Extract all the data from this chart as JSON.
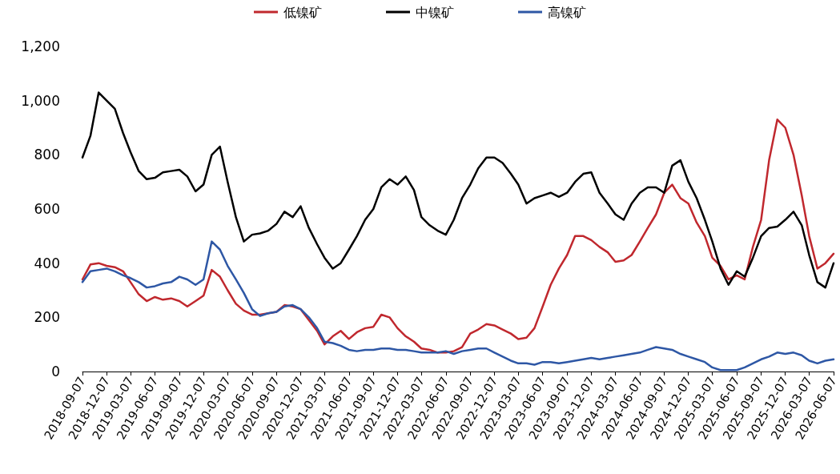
{
  "chart_data": {
    "type": "line",
    "x": [
      "2018-09-07",
      "2018-10-07",
      "2018-11-07",
      "2018-12-07",
      "2019-01-07",
      "2019-02-07",
      "2019-03-07",
      "2019-04-07",
      "2019-05-07",
      "2019-06-07",
      "2019-07-07",
      "2019-08-07",
      "2019-09-07",
      "2019-10-07",
      "2019-11-07",
      "2019-12-07",
      "2020-01-07",
      "2020-02-07",
      "2020-03-07",
      "2020-04-07",
      "2020-05-07",
      "2020-06-07",
      "2020-07-07",
      "2020-08-07",
      "2020-09-07",
      "2020-10-07",
      "2020-11-07",
      "2020-12-07",
      "2021-01-07",
      "2021-02-07",
      "2021-03-07",
      "2021-04-07",
      "2021-05-07",
      "2021-06-07",
      "2021-07-07",
      "2021-08-07",
      "2021-09-07",
      "2021-10-07",
      "2021-11-07",
      "2021-12-07",
      "2022-01-07",
      "2022-02-07",
      "2022-03-07",
      "2022-04-07",
      "2022-05-07",
      "2022-06-07",
      "2022-07-07",
      "2022-08-07",
      "2022-09-07",
      "2022-10-07",
      "2022-11-07",
      "2022-12-07",
      "2023-01-07",
      "2023-02-07",
      "2023-03-07",
      "2023-04-07",
      "2023-05-07",
      "2023-06-07",
      "2023-07-07",
      "2023-08-07",
      "2023-09-07",
      "2023-10-07",
      "2023-11-07",
      "2023-12-07",
      "2024-01-07",
      "2024-02-07",
      "2024-03-07",
      "2024-04-07",
      "2024-05-07",
      "2024-06-07",
      "2024-07-07",
      "2024-08-07",
      "2024-09-07",
      "2024-10-07",
      "2024-11-07",
      "2024-12-07",
      "2025-01-07",
      "2025-02-07",
      "2025-03-07",
      "2025-04-07",
      "2025-05-07",
      "2025-06-07",
      "2025-07-07",
      "2025-08-07",
      "2025-09-07",
      "2025-10-07",
      "2025-11-07",
      "2025-12-07",
      "2026-01-07",
      "2026-02-07",
      "2026-03-07",
      "2026-04-07",
      "2026-05-07",
      "2026-06-07"
    ],
    "series": [
      {
        "name": "低镍矿",
        "color": "#c0282e",
        "values": [
          340,
          395,
          400,
          390,
          385,
          370,
          330,
          285,
          260,
          275,
          265,
          270,
          260,
          240,
          260,
          280,
          375,
          350,
          300,
          250,
          225,
          210,
          210,
          215,
          220,
          245,
          240,
          230,
          190,
          150,
          100,
          130,
          150,
          120,
          145,
          160,
          165,
          210,
          200,
          160,
          130,
          110,
          85,
          80,
          70,
          70,
          75,
          90,
          140,
          155,
          175,
          170,
          155,
          140,
          120,
          125,
          160,
          240,
          320,
          380,
          430,
          500,
          500,
          485,
          460,
          440,
          405,
          410,
          430,
          480,
          530,
          580,
          660,
          690,
          640,
          620,
          550,
          500,
          420,
          390,
          340,
          355,
          340,
          460,
          560,
          780,
          930,
          900,
          800,
          650,
          500,
          380,
          400,
          435
        ]
      },
      {
        "name": "中镍矿",
        "color": "#000000",
        "values": [
          790,
          870,
          1030,
          1000,
          970,
          880,
          810,
          740,
          710,
          715,
          735,
          740,
          745,
          720,
          665,
          690,
          800,
          830,
          700,
          570,
          480,
          505,
          510,
          520,
          545,
          590,
          570,
          610,
          530,
          470,
          420,
          380,
          400,
          450,
          500,
          560,
          600,
          680,
          710,
          690,
          720,
          670,
          570,
          540,
          520,
          505,
          560,
          640,
          690,
          750,
          790,
          790,
          770,
          730,
          690,
          620,
          640,
          650,
          660,
          645,
          660,
          700,
          730,
          735,
          660,
          620,
          580,
          560,
          620,
          660,
          680,
          680,
          660,
          760,
          780,
          700,
          640,
          560,
          480,
          380,
          320,
          370,
          350,
          420,
          500,
          530,
          535,
          560,
          590,
          540,
          430,
          330,
          310,
          400
        ]
      },
      {
        "name": "高镍矿",
        "color": "#2e57a5",
        "values": [
          330,
          370,
          375,
          380,
          370,
          355,
          345,
          330,
          310,
          315,
          325,
          330,
          350,
          340,
          320,
          340,
          480,
          450,
          390,
          340,
          290,
          230,
          205,
          215,
          220,
          240,
          245,
          230,
          200,
          160,
          110,
          105,
          95,
          80,
          75,
          80,
          80,
          85,
          85,
          80,
          80,
          75,
          70,
          70,
          70,
          75,
          65,
          75,
          80,
          85,
          85,
          70,
          55,
          40,
          30,
          30,
          25,
          35,
          35,
          30,
          35,
          40,
          45,
          50,
          45,
          50,
          55,
          60,
          65,
          70,
          80,
          90,
          85,
          80,
          65,
          55,
          45,
          35,
          15,
          5,
          5,
          5,
          15,
          30,
          45,
          55,
          70,
          65,
          70,
          60,
          40,
          30,
          40,
          45
        ]
      }
    ],
    "xlim": [
      "2018-09-07",
      "2026-06-07"
    ],
    "xticks": [
      "2018-09-07",
      "2018-12-07",
      "2019-03-07",
      "2019-06-07",
      "2019-09-07",
      "2019-12-07",
      "2020-03-07",
      "2020-06-07",
      "2020-09-07",
      "2020-12-07",
      "2021-03-07",
      "2021-06-07",
      "2021-09-07",
      "2021-12-07",
      "2022-03-07",
      "2022-06-07",
      "2022-09-07",
      "2022-12-07",
      "2023-03-07",
      "2023-06-07",
      "2023-09-07",
      "2023-12-07",
      "2024-03-07",
      "2024-06-07",
      "2024-09-07",
      "2024-12-07",
      "2025-03-07",
      "2025-06-07",
      "2025-09-07",
      "2025-12-07",
      "2026-03-07",
      "2026-06-07"
    ],
    "ylim": [
      0,
      1200
    ],
    "yticks": [
      0,
      200,
      400,
      600,
      800,
      {
        "value": 1000,
        "label": "1,000"
      },
      {
        "value": 1200,
        "label": "1,200"
      }
    ],
    "grid": false,
    "legend": "top",
    "marker": "none",
    "line_style": "solid"
  }
}
